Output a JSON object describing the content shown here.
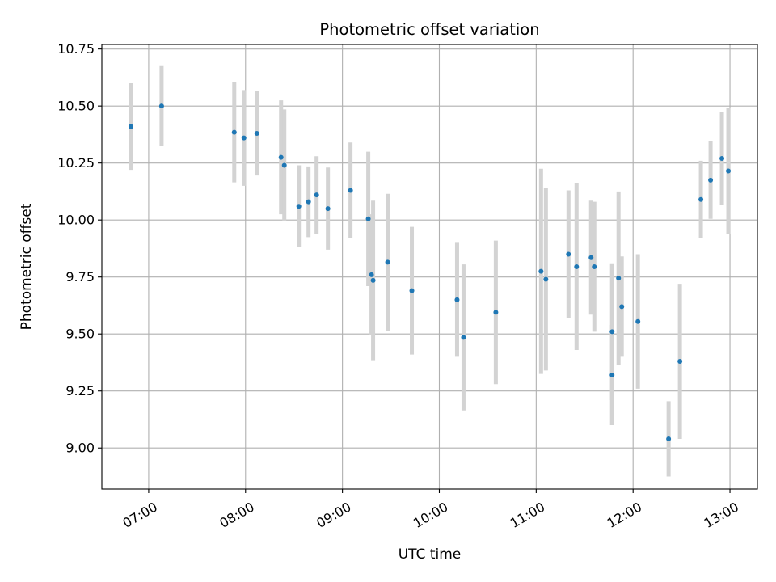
{
  "chart_data": {
    "type": "scatter",
    "title": "Photometric offset variation",
    "xlabel": "UTC time",
    "ylabel": "Photometric offset",
    "xlim": [
      "06:31",
      "13:17"
    ],
    "ylim": [
      8.82,
      10.77
    ],
    "x_ticks": [
      "07:00",
      "08:00",
      "09:00",
      "10:00",
      "11:00",
      "12:00",
      "13:00"
    ],
    "y_ticks": [
      "9.00",
      "9.25",
      "9.50",
      "9.75",
      "10.00",
      "10.25",
      "10.50",
      "10.75"
    ],
    "grid": true,
    "colors": {
      "point": "#1f77b4",
      "errorbar": "#d3d3d3",
      "grid": "#b0b0b0"
    },
    "points": [
      {
        "x": "06:49",
        "y": 10.41,
        "err": 0.19
      },
      {
        "x": "07:08",
        "y": 10.5,
        "err": 0.175
      },
      {
        "x": "07:53",
        "y": 10.385,
        "err": 0.22
      },
      {
        "x": "07:59",
        "y": 10.36,
        "err": 0.21
      },
      {
        "x": "08:07",
        "y": 10.38,
        "err": 0.185
      },
      {
        "x": "08:22",
        "y": 10.275,
        "err": 0.25
      },
      {
        "x": "08:24",
        "y": 10.24,
        "err": 0.245
      },
      {
        "x": "08:33",
        "y": 10.06,
        "err": 0.18
      },
      {
        "x": "08:39",
        "y": 10.08,
        "err": 0.155
      },
      {
        "x": "08:44",
        "y": 10.11,
        "err": 0.17
      },
      {
        "x": "08:51",
        "y": 10.05,
        "err": 0.18
      },
      {
        "x": "09:05",
        "y": 10.13,
        "err": 0.21
      },
      {
        "x": "09:16",
        "y": 10.005,
        "err": 0.295
      },
      {
        "x": "09:18",
        "y": 9.76,
        "err": 0.265
      },
      {
        "x": "09:19",
        "y": 9.735,
        "err": 0.35
      },
      {
        "x": "09:28",
        "y": 9.815,
        "err": 0.3
      },
      {
        "x": "09:43",
        "y": 9.69,
        "err": 0.28
      },
      {
        "x": "10:11",
        "y": 9.65,
        "err": 0.25
      },
      {
        "x": "10:15",
        "y": 9.485,
        "err": 0.32
      },
      {
        "x": "10:35",
        "y": 9.595,
        "err": 0.315
      },
      {
        "x": "11:03",
        "y": 9.775,
        "err": 0.45
      },
      {
        "x": "11:06",
        "y": 9.74,
        "err": 0.4
      },
      {
        "x": "11:20",
        "y": 9.85,
        "err": 0.28
      },
      {
        "x": "11:25",
        "y": 9.795,
        "err": 0.365
      },
      {
        "x": "11:34",
        "y": 9.835,
        "err": 0.25
      },
      {
        "x": "11:36",
        "y": 9.795,
        "err": 0.285
      },
      {
        "x": "11:47",
        "y": 9.32,
        "err": 0.22
      },
      {
        "x": "11:47",
        "y": 9.51,
        "err": 0.3
      },
      {
        "x": "11:51",
        "y": 9.745,
        "err": 0.38
      },
      {
        "x": "11:53",
        "y": 9.62,
        "err": 0.22
      },
      {
        "x": "12:03",
        "y": 9.555,
        "err": 0.295
      },
      {
        "x": "12:22",
        "y": 9.04,
        "err": 0.165
      },
      {
        "x": "12:29",
        "y": 9.38,
        "err": 0.34
      },
      {
        "x": "12:42",
        "y": 10.09,
        "err": 0.17
      },
      {
        "x": "12:48",
        "y": 10.175,
        "err": 0.17
      },
      {
        "x": "12:55",
        "y": 10.27,
        "err": 0.205
      },
      {
        "x": "12:59",
        "y": 10.215,
        "err": 0.275
      }
    ]
  }
}
